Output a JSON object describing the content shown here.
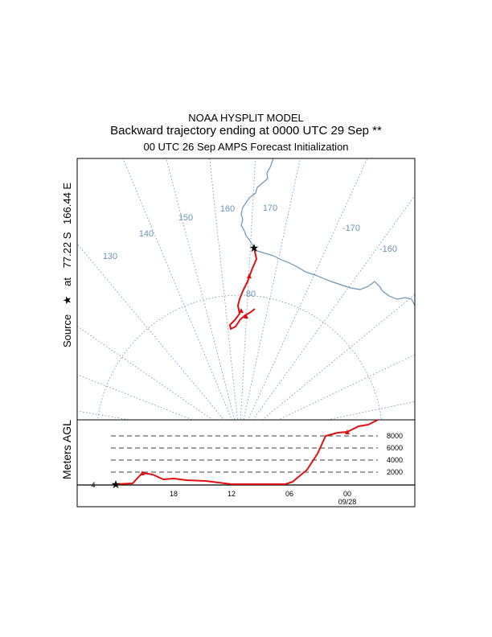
{
  "titles": {
    "line1": "NOAA HYSPLIT MODEL",
    "line2": "Backward trajectory ending at 0000 UTC 29 Sep **",
    "line3": "00 UTC 26 Sep    AMPS  Forecast Initialization"
  },
  "source": {
    "label": "Source",
    "at": "at",
    "lat": "77.22 S",
    "lon": "166.44 E"
  },
  "map": {
    "longitude_labels": [
      "130",
      "140",
      "150",
      "160",
      "170",
      "-170",
      "-160"
    ],
    "latitude_labels": [
      "80"
    ]
  },
  "height_panel": {
    "ylabel": "Meters AGL",
    "height_labels": [
      "8000",
      "6000",
      "4000",
      "2000"
    ],
    "time_labels": [
      "18",
      "12",
      "06",
      "00"
    ],
    "date_label": "09/28",
    "left_mark": "4"
  },
  "colors": {
    "trajectory": "#dd1111",
    "map_lines": "#6b94b8"
  },
  "chart_data": {
    "type": "line",
    "ylabel": "Meters AGL",
    "x": [
      "18",
      "12",
      "06",
      "00"
    ],
    "series": [
      {
        "height_agl_m": [
          0,
          1500,
          1200,
          300,
          100,
          0,
          0,
          0,
          0,
          0,
          500,
          2500,
          6300,
          6600,
          7000,
          8000,
          8200
        ]
      }
    ]
  }
}
